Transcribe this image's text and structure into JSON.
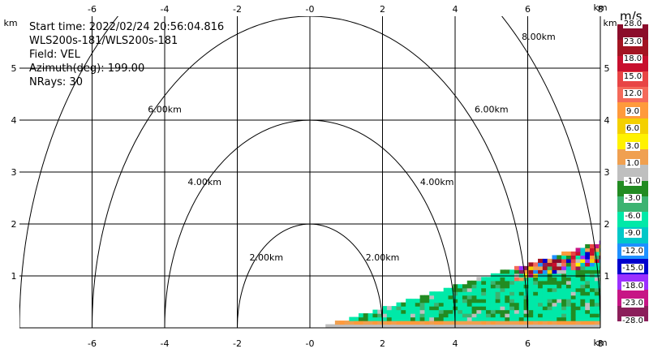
{
  "info": {
    "start_time": "Start time: 2022/02/24 20:56:04.816",
    "instrument": "WLS200s-181/WLS200s-181",
    "field": "Field: VEL",
    "azimuth": "Azimuth(deg): 199.00",
    "nrays": "NRays: 30"
  },
  "axis_unit": "km",
  "colorbar": {
    "unit": "m/s",
    "labels": [
      "28.0",
      "23.0",
      "18.0",
      "15.0",
      "12.0",
      "9.0",
      "6.0",
      "3.0",
      "1.0",
      "-1.0",
      "-3.0",
      "-6.0",
      "-9.0",
      "-12.0",
      "-15.0",
      "-18.0",
      "-23.0",
      "-28.0"
    ],
    "colors": [
      "#8b0d2b",
      "#a31522",
      "#c8102e",
      "#e84545",
      "#f46a5a",
      "#ff9a3c",
      "#f4d000",
      "#fff200",
      "#f0a050",
      "#bfbfbf",
      "#228b22",
      "#3cb371",
      "#00e9a8",
      "#00c8c8",
      "#1e90ff",
      "#0000cd",
      "#9b30ff",
      "#c71585",
      "#8b1e5a"
    ]
  },
  "chart_data": {
    "type": "heatmap",
    "title": "",
    "x_axis": {
      "label": "km",
      "range": [
        -8,
        8
      ],
      "ticks": [
        "-6",
        "-4",
        "-2",
        "-0",
        "2",
        "4",
        "6",
        "8"
      ]
    },
    "y_axis": {
      "label": "km",
      "range": [
        0,
        6
      ],
      "ticks": [
        "1",
        "2",
        "3",
        "4",
        "5"
      ]
    },
    "range_rings": [
      "2.00km",
      "4.00km",
      "6.00km",
      "8.00km"
    ],
    "sector": {
      "x_start": 0.3,
      "x_end": 8.0,
      "angle_top_deg": 12,
      "field": "VEL",
      "unit": "m/s"
    }
  }
}
